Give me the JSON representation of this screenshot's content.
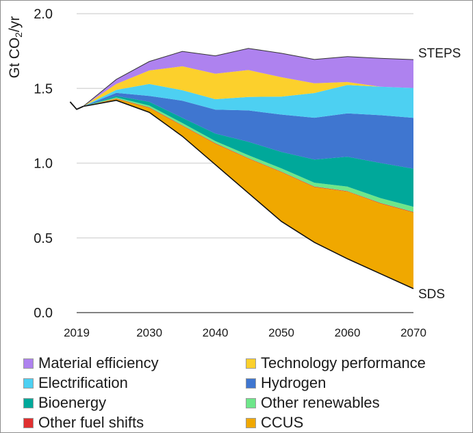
{
  "chart_data": {
    "type": "area",
    "title": "",
    "xlabel": "",
    "ylabel_prefix": "Gt CO",
    "ylabel_sub": "2",
    "ylabel_suffix": "/yr",
    "ylim": [
      0,
      2.0
    ],
    "xlim": [
      2019,
      2070
    ],
    "grid": true,
    "legend_position": "bottom",
    "y_ticks": [
      {
        "value": 0.0,
        "label": "0.0"
      },
      {
        "value": 0.5,
        "label": "0.5"
      },
      {
        "value": 1.0,
        "label": "1.0"
      },
      {
        "value": 1.5,
        "label": "1.5"
      },
      {
        "value": 2.0,
        "label": "2.0"
      }
    ],
    "x_ticks": [
      {
        "value": 2019,
        "label": "2019"
      },
      {
        "value": 2030,
        "label": "2030"
      },
      {
        "value": 2040,
        "label": "2040"
      },
      {
        "value": 2050,
        "label": "2050"
      },
      {
        "value": 2060,
        "label": "2060"
      },
      {
        "value": 2070,
        "label": "2070"
      }
    ],
    "history": {
      "x": [
        2018,
        2019,
        2020
      ],
      "y": [
        1.41,
        1.36,
        1.38
      ]
    },
    "x": [
      2019,
      2020,
      2025,
      2030,
      2035,
      2040,
      2045,
      2050,
      2055,
      2060,
      2065,
      2070
    ],
    "sds_line": [
      1.36,
      1.38,
      1.42,
      1.34,
      1.18,
      0.99,
      0.8,
      0.61,
      0.47,
      0.36,
      0.26,
      0.16
    ],
    "series": [
      {
        "name": "CCUS",
        "color": "#f0a800",
        "values": [
          0,
          0,
          0.01,
          0.03,
          0.07,
          0.14,
          0.23,
          0.33,
          0.37,
          0.45,
          0.47,
          0.51
        ]
      },
      {
        "name": "Other fuel shifts",
        "color": "#e03030",
        "values": [
          0,
          0,
          0.003,
          0.003,
          0.003,
          0.003,
          0.003,
          0.003,
          0.003,
          0.003,
          0.003,
          0.003
        ]
      },
      {
        "name": "Other renewables",
        "color": "#6ee68a",
        "values": [
          0,
          0,
          0.007,
          0.012,
          0.015,
          0.015,
          0.02,
          0.022,
          0.026,
          0.03,
          0.033,
          0.035
        ]
      },
      {
        "name": "Bioenergy",
        "color": "#00a89a",
        "values": [
          0,
          0,
          0.01,
          0.025,
          0.035,
          0.05,
          0.09,
          0.11,
          0.155,
          0.2,
          0.235,
          0.255
        ]
      },
      {
        "name": "Hydrogen",
        "color": "#3f76d0",
        "values": [
          0,
          0,
          0.02,
          0.04,
          0.115,
          0.16,
          0.21,
          0.25,
          0.28,
          0.29,
          0.32,
          0.34
        ]
      },
      {
        "name": "Electrification",
        "color": "#4dd0f2",
        "values": [
          0,
          0,
          0.02,
          0.08,
          0.07,
          0.07,
          0.09,
          0.12,
          0.165,
          0.19,
          0.19,
          0.2
        ]
      },
      {
        "name": "Technology performance",
        "color": "#fcd02c",
        "values": [
          0,
          0,
          0.04,
          0.09,
          0.16,
          0.17,
          0.18,
          0.13,
          0.065,
          0.02,
          0.0,
          0.0
        ]
      },
      {
        "name": "Material efficiency",
        "color": "#ae82ef",
        "values": [
          0,
          0,
          0.03,
          0.06,
          0.1,
          0.12,
          0.145,
          0.16,
          0.16,
          0.17,
          0.19,
          0.19
        ]
      }
    ],
    "annotations": [
      {
        "text": "STEPS",
        "x": 2070,
        "y": 1.73
      },
      {
        "text": "SDS",
        "x": 2070,
        "y": 0.16
      }
    ]
  },
  "legend": [
    {
      "label": "Material efficiency",
      "color": "#ae82ef"
    },
    {
      "label": "Technology performance",
      "color": "#fcd02c"
    },
    {
      "label": "Electrification",
      "color": "#4dd0f2"
    },
    {
      "label": "Hydrogen",
      "color": "#3f76d0"
    },
    {
      "label": "Bioenergy",
      "color": "#00a89a"
    },
    {
      "label": "Other renewables",
      "color": "#6ee68a"
    },
    {
      "label": "Other fuel shifts",
      "color": "#e03030"
    },
    {
      "label": "CCUS",
      "color": "#f0a800"
    }
  ]
}
